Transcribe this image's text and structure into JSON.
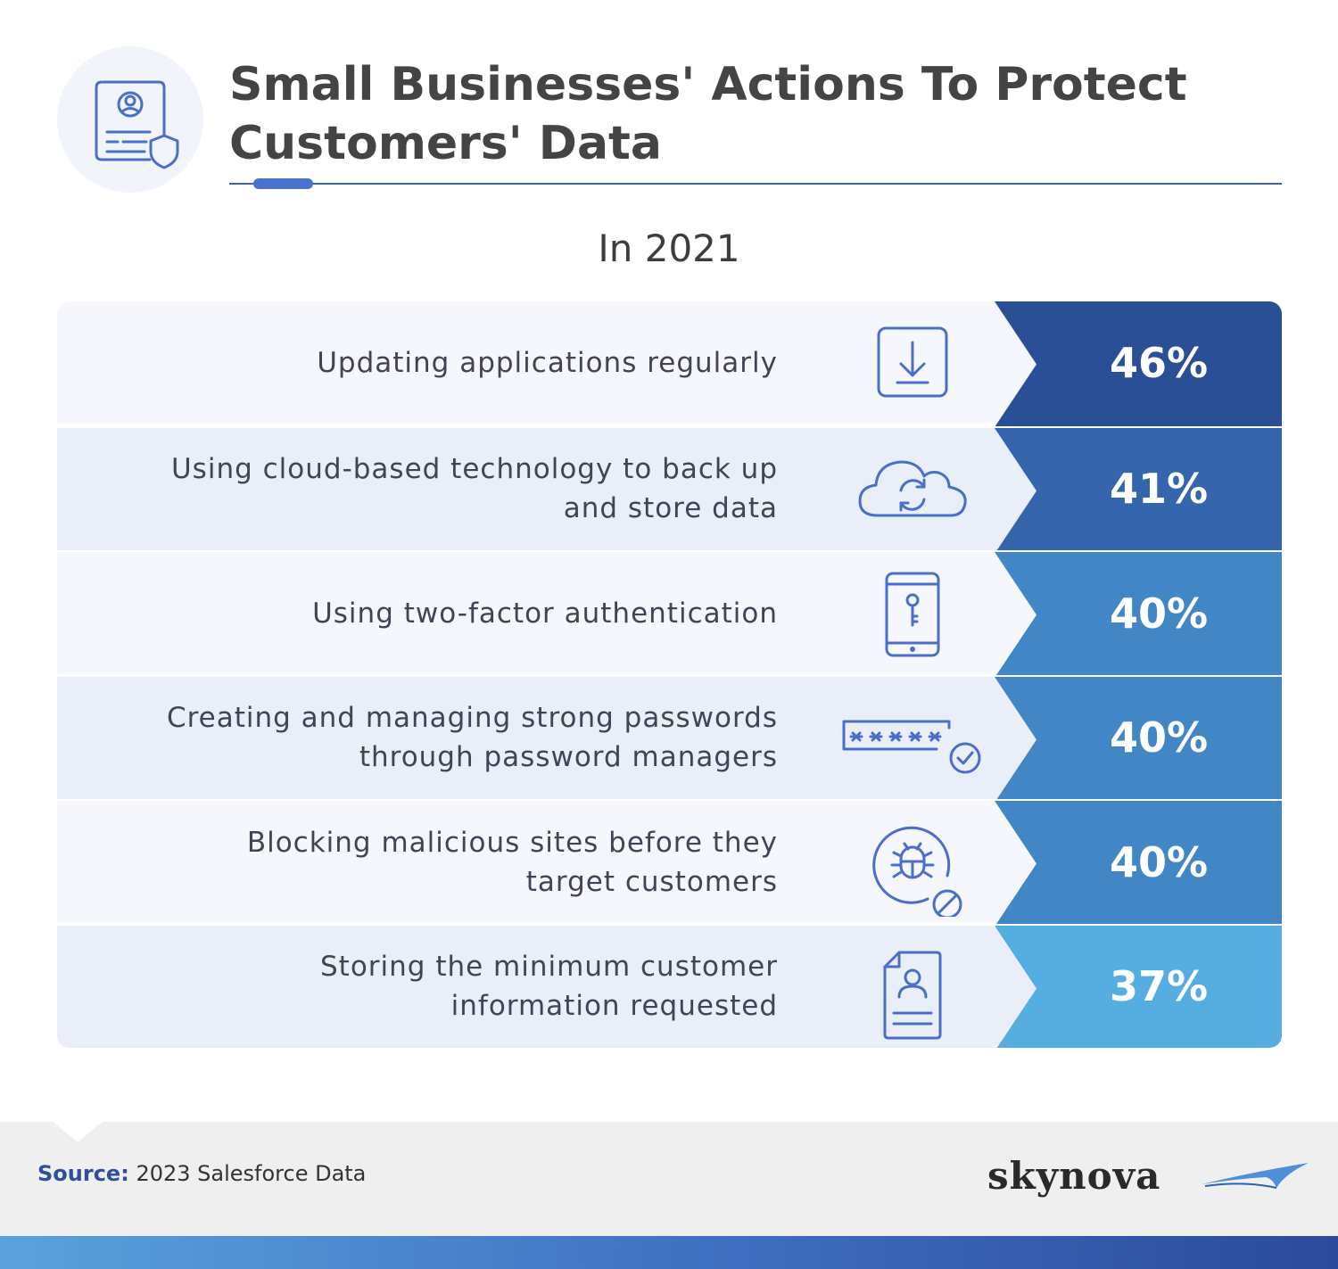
{
  "header": {
    "title": "Small Businesses' Actions To Protect Customers' Data",
    "subtitle": "In 2021",
    "icon": "id-card-shield-icon"
  },
  "chart_data": {
    "type": "table",
    "title": "Small Businesses' Actions To Protect Customers' Data",
    "subtitle": "In 2021",
    "categories": [
      "Updating applications regularly",
      "Using cloud-based technology to back up and store data",
      "Using two-factor authentication",
      "Creating and managing strong passwords through password managers",
      "Blocking malicious sites before they target customers",
      "Storing the minimum customer information requested"
    ],
    "values": [
      46,
      41,
      40,
      40,
      40,
      37
    ],
    "unit": "%"
  },
  "rows": [
    {
      "label_lines": [
        "Updating applications regularly"
      ],
      "value": "46%",
      "icon": "download-icon",
      "bg": "#f5f7fc",
      "color": "#2b4f97"
    },
    {
      "label_lines": [
        "Using cloud-based technology to back up",
        "and store data"
      ],
      "value": "41%",
      "icon": "cloud-sync-icon",
      "bg": "#eaeef8",
      "color": "#3465ad"
    },
    {
      "label_lines": [
        "Using two-factor authentication"
      ],
      "value": "40%",
      "icon": "phone-key-icon",
      "bg": "#f5f7fc",
      "color": "#4286c6"
    },
    {
      "label_lines": [
        "Creating and managing strong passwords",
        "through password managers"
      ],
      "value": "40%",
      "icon": "password-check-icon",
      "bg": "#eaeef8",
      "color": "#4286c6"
    },
    {
      "label_lines": [
        "Blocking malicious sites before they",
        "target customers"
      ],
      "value": "40%",
      "icon": "bug-blocked-icon",
      "bg": "#f5f7fc",
      "color": "#4286c6"
    },
    {
      "label_lines": [
        "Storing the minimum customer",
        "information requested"
      ],
      "value": "37%",
      "icon": "user-document-icon",
      "bg": "#eaeef8",
      "color": "#55ade0"
    }
  ],
  "footer": {
    "source_label": "Source:",
    "source_text": "2023 Salesforce Data",
    "brand": "skynova"
  },
  "colors": {
    "accent": "#3a63b4",
    "icon_stroke": "#4a6fc9",
    "text": "#3f4555"
  }
}
